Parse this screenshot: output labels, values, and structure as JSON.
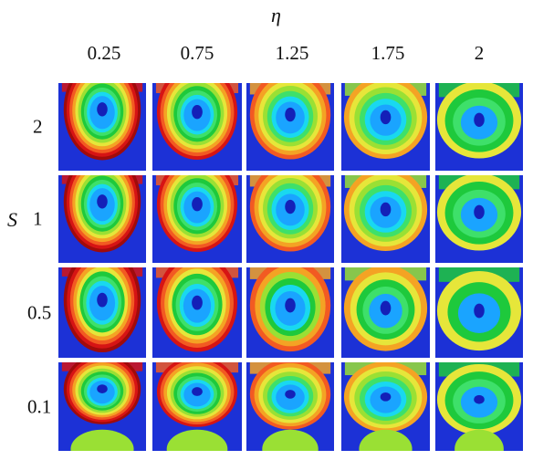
{
  "figure": {
    "column_axis_symbol": "η",
    "row_axis_symbol": "S",
    "columns": [
      "0.25",
      "0.75",
      "1.25",
      "1.75",
      "2"
    ],
    "rows": [
      "2",
      "1",
      "0.5",
      "0.1"
    ]
  },
  "palette": {
    "background": "#1c31d6",
    "levels": [
      "#1aa4ff",
      "#19d8f0",
      "#3ee06a",
      "#1ec93c",
      "#9ae034",
      "#e6e63a",
      "#f4a324",
      "#f25a22",
      "#d61414",
      "#a00b0b"
    ],
    "core": "#1420b8"
  }
}
